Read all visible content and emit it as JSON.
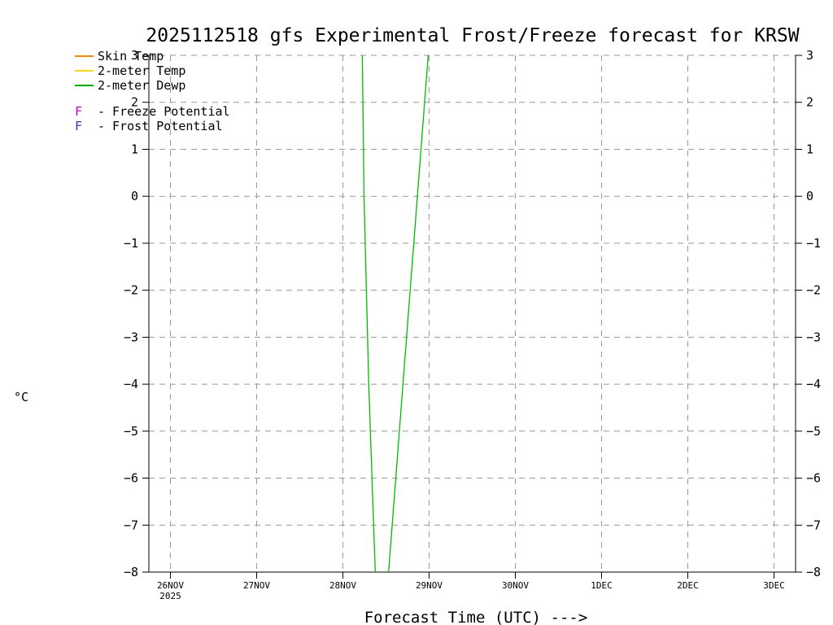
{
  "title": "2025112518 gfs Experimental Frost/Freeze forecast for KRSW",
  "legend": {
    "lines": [
      {
        "label": "Skin Temp",
        "color": "#ff8800"
      },
      {
        "label": "2-meter Temp",
        "color": "#ffd900"
      },
      {
        "label": "2-meter Dewp",
        "color": "#00bb00"
      }
    ],
    "flags": [
      {
        "symbol": "F",
        "text": "- Freeze Potential",
        "color": "#cc00cc"
      },
      {
        "symbol": "F",
        "text": "- Frost Potential",
        "color": "#3333cc"
      }
    ]
  },
  "y_axis": {
    "title": "°C",
    "ticks": [
      3,
      2,
      1,
      0,
      -1,
      -2,
      -3,
      -4,
      -5,
      -6,
      -7,
      -8
    ]
  },
  "x_axis": {
    "title": "Forecast Time (UTC) --->",
    "tick_labels": [
      "26NOV",
      "27NOV",
      "28NOV",
      "29NOV",
      "30NOV",
      "1DEC",
      "2DEC",
      "3DEC"
    ],
    "tick_positions_days": [
      0,
      1,
      2,
      3,
      4,
      5,
      6,
      7
    ],
    "year_label": "2025"
  },
  "colors": {
    "grid": "#999999",
    "axis": "#000000",
    "text": "#000000"
  },
  "chart_data": {
    "type": "line",
    "x_unit": "days since 26NOV2025 00UTC",
    "xlim": [
      -0.25,
      7.25
    ],
    "ylim": [
      -8,
      3
    ],
    "grid": "dashed",
    "series": [
      {
        "name": "2-meter Dewp",
        "color": "#00bb00",
        "segments": [
          [
            [
              2.225,
              3.0
            ],
            [
              2.245,
              0.0
            ],
            [
              2.3,
              -4.0
            ],
            [
              2.375,
              -8.0
            ]
          ],
          [
            [
              2.53,
              -8.0
            ],
            [
              2.73,
              -3.2
            ],
            [
              2.99,
              3.0
            ]
          ]
        ]
      }
    ]
  }
}
